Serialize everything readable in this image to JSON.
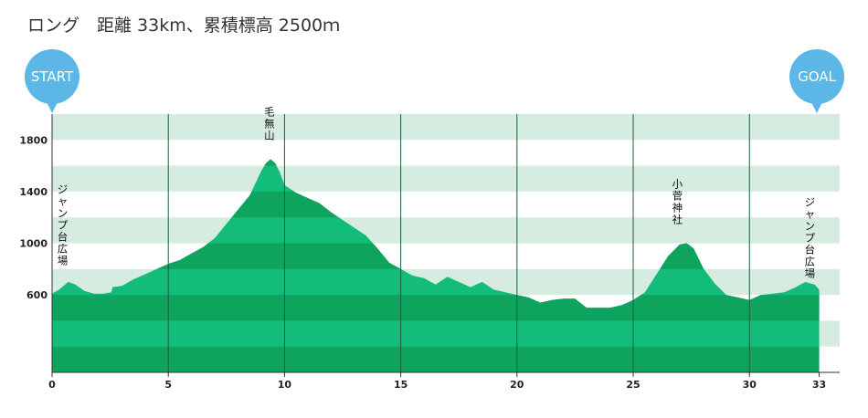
{
  "chart_data": {
    "type": "area",
    "title": "ロング　距離 33km、累積標高 2500ｍ",
    "xlabel": "",
    "ylabel": "",
    "xlim": [
      0,
      34
    ],
    "ylim": [
      0,
      2000
    ],
    "x_ticks": [
      0,
      5,
      10,
      15,
      20,
      25,
      30,
      33
    ],
    "y_ticks": [
      600,
      1000,
      1400,
      1800
    ],
    "grid": true,
    "legend": "none",
    "colors": {
      "area_light": "#13bd79",
      "area_dark": "#0fa45d",
      "band": "#d6ece0",
      "line": "#1a5e3c",
      "marker": "#5cb6e6"
    },
    "start_marker": "START",
    "goal_marker": "GOAL",
    "annotations": [
      {
        "text": "ジャンプ台広場",
        "x": 0.45,
        "y": 1390
      },
      {
        "text": "毛無山",
        "x": 9.35,
        "y": 1990
      },
      {
        "text": "小菅神社",
        "x": 26.9,
        "y": 1430
      },
      {
        "text": "ジャンプ台広場",
        "x": 32.6,
        "y": 1290
      }
    ],
    "x": [
      0,
      0.3,
      0.7,
      1.0,
      1.4,
      1.8,
      2.2,
      2.55,
      2.6,
      3.0,
      3.5,
      4.0,
      4.5,
      5.0,
      5.5,
      6.0,
      6.5,
      7.0,
      7.5,
      8.0,
      8.5,
      9.0,
      9.2,
      9.4,
      9.6,
      9.8,
      10.0,
      10.5,
      11.0,
      11.5,
      12.0,
      12.5,
      13.0,
      13.5,
      14.0,
      14.5,
      15.0,
      15.5,
      16.0,
      16.5,
      17.0,
      17.5,
      18.0,
      18.5,
      19.0,
      19.5,
      20.0,
      20.5,
      21.0,
      21.5,
      22.0,
      22.5,
      23.0,
      23.5,
      24.0,
      24.5,
      25.0,
      25.5,
      26.0,
      26.5,
      27.0,
      27.3,
      27.6,
      28.0,
      28.5,
      29.0,
      29.5,
      30.0,
      30.5,
      31.0,
      31.5,
      32.0,
      32.4,
      32.8,
      33.0
    ],
    "values": [
      610,
      640,
      700,
      680,
      630,
      610,
      610,
      620,
      660,
      670,
      720,
      760,
      800,
      840,
      870,
      920,
      970,
      1040,
      1150,
      1260,
      1370,
      1560,
      1620,
      1650,
      1620,
      1550,
      1450,
      1390,
      1350,
      1310,
      1240,
      1180,
      1120,
      1060,
      960,
      850,
      800,
      750,
      730,
      680,
      740,
      700,
      660,
      700,
      640,
      620,
      600,
      580,
      540,
      560,
      570,
      570,
      500,
      500,
      500,
      520,
      560,
      620,
      760,
      900,
      990,
      1000,
      960,
      810,
      690,
      600,
      580,
      560,
      600,
      610,
      620,
      660,
      700,
      680,
      640
    ]
  }
}
